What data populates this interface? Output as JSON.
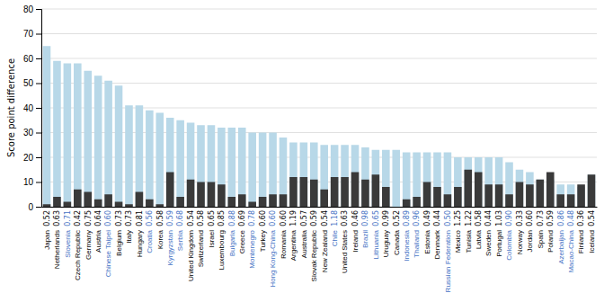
{
  "chart_data": {
    "type": "bar",
    "categories": [
      "Japan",
      "Netherlands",
      "Slovenia",
      "Czech Republic",
      "Germany",
      "Austria",
      "Chinese Taipei",
      "Belgium",
      "Italy",
      "Hungary",
      "Croatia",
      "Korea",
      "Kyrgyzstan",
      "Serbia",
      "United Kingdom",
      "Switzerland",
      "Israel",
      "Luxembourg",
      "Bulgaria",
      "Greece",
      "Montenegro",
      "Turkey",
      "Hong Kong-China",
      "Romania",
      "Argentina",
      "Australia",
      "Slovak Republic",
      "New Zealand",
      "Chile",
      "United States",
      "Ireland",
      "Brazil",
      "Lithuania",
      "Uruguay",
      "Canada",
      "Indonesia",
      "Thailand",
      "Estonia",
      "Denmark",
      "Russian Federation",
      "Mexico",
      "Tunisia",
      "Latvia",
      "Sweden",
      "Portugal",
      "Colombia",
      "Norway",
      "Jordan",
      "Spain",
      "Poland",
      "Azerbaijan",
      "Macao-China",
      "Finland",
      "Iceland"
    ],
    "series": [
      {
        "color": "#b8d8e8",
        "values": [
          65,
          59,
          58,
          58,
          55,
          53,
          51,
          49,
          41,
          41,
          39,
          38,
          36,
          35,
          34,
          33,
          33,
          32,
          32,
          32,
          30,
          30,
          30,
          28,
          26,
          26,
          26,
          25,
          25,
          25,
          25,
          24,
          23,
          23,
          23,
          22,
          22,
          22,
          22,
          22,
          20,
          20,
          20,
          20,
          20,
          18,
          15,
          14,
          11,
          11,
          9,
          9,
          8,
          13
        ]
      },
      {
        "color": "#3a3a3a",
        "values": [
          1,
          4,
          2,
          7,
          6,
          3,
          5,
          2,
          1,
          6,
          3,
          1,
          14,
          4,
          11,
          10,
          10,
          9,
          4,
          5,
          2,
          4,
          5,
          5,
          12,
          12,
          11,
          7,
          12,
          12,
          14,
          11,
          13,
          8,
          0,
          3,
          4,
          10,
          8,
          5,
          8,
          15,
          14,
          9,
          9,
          5,
          10,
          9,
          11,
          14,
          5,
          5,
          9,
          13
        ]
      }
    ],
    "sec_values": [
      "0.52",
      "0.63",
      "0.71",
      "0.42",
      "0.75",
      "0.64",
      "0.60",
      "0.73",
      "0.73",
      "0.81",
      "0.56",
      "0.58",
      "0.59",
      "0.68",
      "0.54",
      "0.58",
      "0.65",
      "0.85",
      "0.88",
      "0.69",
      "0.78",
      "0.60",
      "0.60",
      "0.60",
      "1.19",
      "0.57",
      "0.59",
      "0.54",
      "1.18",
      "0.63",
      "0.46",
      "0.98",
      "0.65",
      "0.99",
      "0.52",
      "0.89",
      "0.96",
      "0.49",
      "0.44",
      "0.50",
      "1.25",
      "1.22",
      "0.58",
      "0.44",
      "1.03",
      "0.90",
      "0.33",
      "0.60",
      "0.73",
      "0.59",
      "0.86",
      "0.48",
      "0.36",
      "0.54"
    ],
    "label_colors": [
      "#000000",
      "#000000",
      "#4472c4",
      "#000000",
      "#000000",
      "#000000",
      "#4472c4",
      "#000000",
      "#000000",
      "#000000",
      "#4472c4",
      "#000000",
      "#4472c4",
      "#4472c4",
      "#000000",
      "#000000",
      "#000000",
      "#000000",
      "#4472c4",
      "#000000",
      "#4472c4",
      "#000000",
      "#4472c4",
      "#000000",
      "#000000",
      "#000000",
      "#000000",
      "#000000",
      "#4472c4",
      "#000000",
      "#000000",
      "#4472c4",
      "#4472c4",
      "#000000",
      "#000000",
      "#4472c4",
      "#4472c4",
      "#000000",
      "#000000",
      "#4472c4",
      "#000000",
      "#000000",
      "#000000",
      "#000000",
      "#000000",
      "#4472c4",
      "#000000",
      "#000000",
      "#000000",
      "#000000",
      "#4472c4",
      "#4472c4",
      "#000000",
      "#000000"
    ],
    "y_label": "Score point difference",
    "ylim": [
      0,
      80
    ],
    "yticks": [
      0,
      10,
      20,
      30,
      40,
      50,
      60,
      70,
      80
    ],
    "grid": true
  }
}
